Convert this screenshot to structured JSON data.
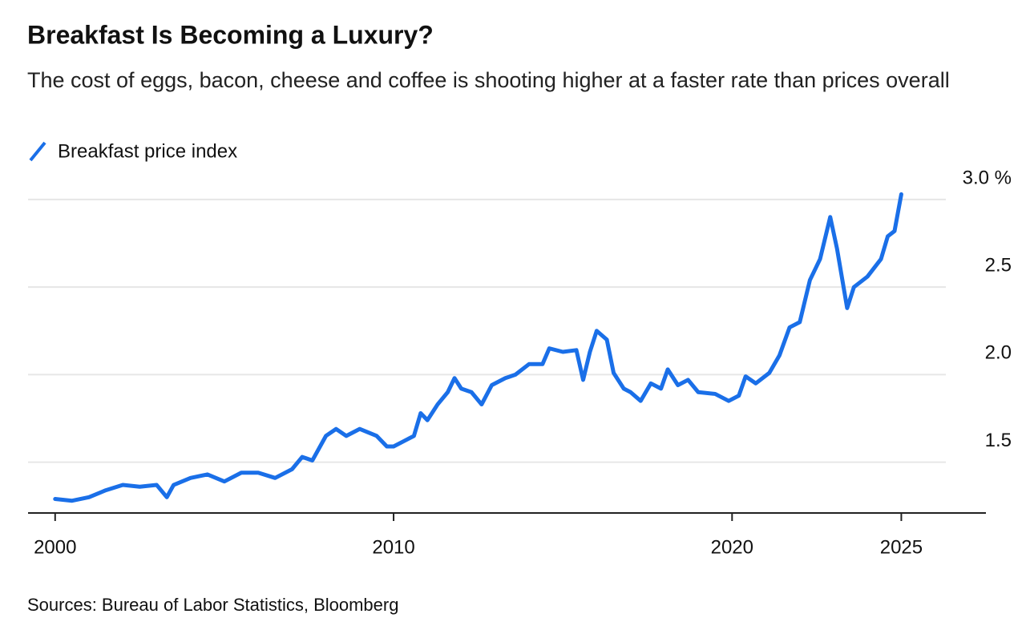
{
  "chart_data": {
    "type": "line",
    "title": "Breakfast Is Becoming a Luxury?",
    "subtitle": "The cost of eggs, bacon, cheese and coffee is shooting higher at a faster rate than prices overall",
    "source": "Sources: Bureau of Labor Statistics, Bloomberg",
    "series": [
      {
        "name": "Breakfast price index",
        "color": "#1a6fe8",
        "x": [
          2000,
          2000.5,
          2001,
          2001.5,
          2002,
          2002.5,
          2003,
          2003.3,
          2003.5,
          2004,
          2004.5,
          2005,
          2005.5,
          2006,
          2006.5,
          2007,
          2007.3,
          2007.6,
          2008,
          2008.3,
          2008.6,
          2009,
          2009.5,
          2009.8,
          2010,
          2010.3,
          2010.6,
          2010.8,
          2011,
          2011.3,
          2011.6,
          2011.8,
          2012,
          2012.3,
          2012.6,
          2012.9,
          2013.3,
          2013.6,
          2014,
          2014.4,
          2014.6,
          2015,
          2015.4,
          2015.6,
          2015.8,
          2016,
          2016.3,
          2016.5,
          2016.8,
          2017,
          2017.3,
          2017.6,
          2017.9,
          2018.1,
          2018.4,
          2018.7,
          2019,
          2019.5,
          2019.9,
          2020.2,
          2020.4,
          2020.7,
          2021.1,
          2021.4,
          2021.7,
          2022,
          2022.3,
          2022.6,
          2022.9,
          2023.1,
          2023.4,
          2023.6,
          2024,
          2024.4,
          2024.6,
          2024.8,
          2025.0
        ],
        "values": [
          1.29,
          1.28,
          1.3,
          1.34,
          1.37,
          1.36,
          1.37,
          1.3,
          1.37,
          1.41,
          1.43,
          1.39,
          1.44,
          1.44,
          1.41,
          1.46,
          1.53,
          1.51,
          1.65,
          1.69,
          1.65,
          1.69,
          1.65,
          1.59,
          1.59,
          1.62,
          1.65,
          1.78,
          1.74,
          1.83,
          1.9,
          1.98,
          1.92,
          1.9,
          1.83,
          1.94,
          1.98,
          2.0,
          2.06,
          2.06,
          2.15,
          2.13,
          2.14,
          1.97,
          2.13,
          2.25,
          2.2,
          2.01,
          1.92,
          1.9,
          1.85,
          1.95,
          1.92,
          2.03,
          1.94,
          1.97,
          1.9,
          1.89,
          1.85,
          1.88,
          1.99,
          1.95,
          2.01,
          2.11,
          2.27,
          2.3,
          2.54,
          2.66,
          2.9,
          2.72,
          2.38,
          2.5,
          2.56,
          2.66,
          2.79,
          2.82,
          3.03
        ]
      }
    ],
    "xlim": [
      1999.2,
      2027.5
    ],
    "xticks": [
      2000,
      2010,
      2020,
      2025
    ],
    "ylim": [
      1.21,
      3.05
    ],
    "yticks": [
      1.5,
      {
        "value": 2,
        "label": "2.0"
      },
      2.5,
      {
        "value": 3,
        "label": "3.0 %"
      }
    ],
    "grid": true
  }
}
